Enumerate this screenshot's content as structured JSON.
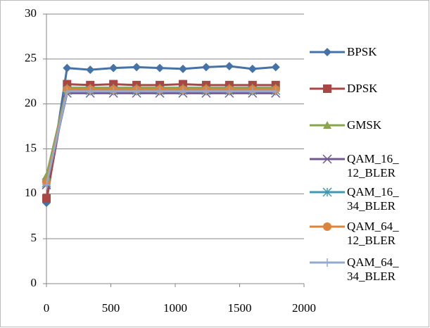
{
  "chart_data": {
    "type": "line",
    "x": [
      0,
      160,
      340,
      520,
      700,
      880,
      1060,
      1240,
      1420,
      1600,
      1780
    ],
    "xlim": [
      0,
      2000
    ],
    "xticks": [
      0,
      500,
      1000,
      1500,
      2000
    ],
    "ylim": [
      0,
      30
    ],
    "yticks": [
      0,
      5,
      10,
      15,
      20,
      25,
      30
    ],
    "grid": true,
    "legend": "right",
    "series": [
      {
        "name": "BPSK",
        "color": "#4572a7",
        "marker": "diamond",
        "values": [
          9,
          24,
          23.8,
          24,
          24.1,
          24,
          23.9,
          24.1,
          24.2,
          23.9,
          24.1
        ]
      },
      {
        "name": "DPSK",
        "color": "#aa4643",
        "marker": "square",
        "values": [
          9.5,
          22.2,
          22.1,
          22.2,
          22.1,
          22.1,
          22.2,
          22.1,
          22.1,
          22.1,
          22.1
        ]
      },
      {
        "name": "GMSK",
        "color": "#89a54e",
        "marker": "triangle",
        "values": [
          12,
          21.8,
          21.8,
          21.8,
          21.8,
          21.8,
          21.8,
          21.8,
          21.8,
          21.8,
          21.8
        ]
      },
      {
        "name": "QAM_16_12_BLER",
        "color": "#71588f",
        "marker": "x",
        "values": [
          11,
          21.2,
          21.2,
          21.2,
          21.2,
          21.2,
          21.2,
          21.2,
          21.2,
          21.2,
          21.2
        ]
      },
      {
        "name": "QAM_16_34_BLER",
        "color": "#4198af",
        "marker": "star",
        "values": [
          11.2,
          21.5,
          21.5,
          21.5,
          21.5,
          21.5,
          21.5,
          21.5,
          21.5,
          21.5,
          21.5
        ]
      },
      {
        "name": "QAM_64_12_BLER",
        "color": "#db843d",
        "marker": "circle",
        "values": [
          11.3,
          21.6,
          21.6,
          21.6,
          21.6,
          21.6,
          21.6,
          21.6,
          21.6,
          21.6,
          21.6
        ]
      },
      {
        "name": "QAM_64_34_BLER",
        "color": "#93a9cf",
        "marker": "plus",
        "values": [
          11,
          21.4,
          21.4,
          21.4,
          21.4,
          21.4,
          21.4,
          21.4,
          21.4,
          21.4,
          21.4
        ]
      }
    ]
  }
}
